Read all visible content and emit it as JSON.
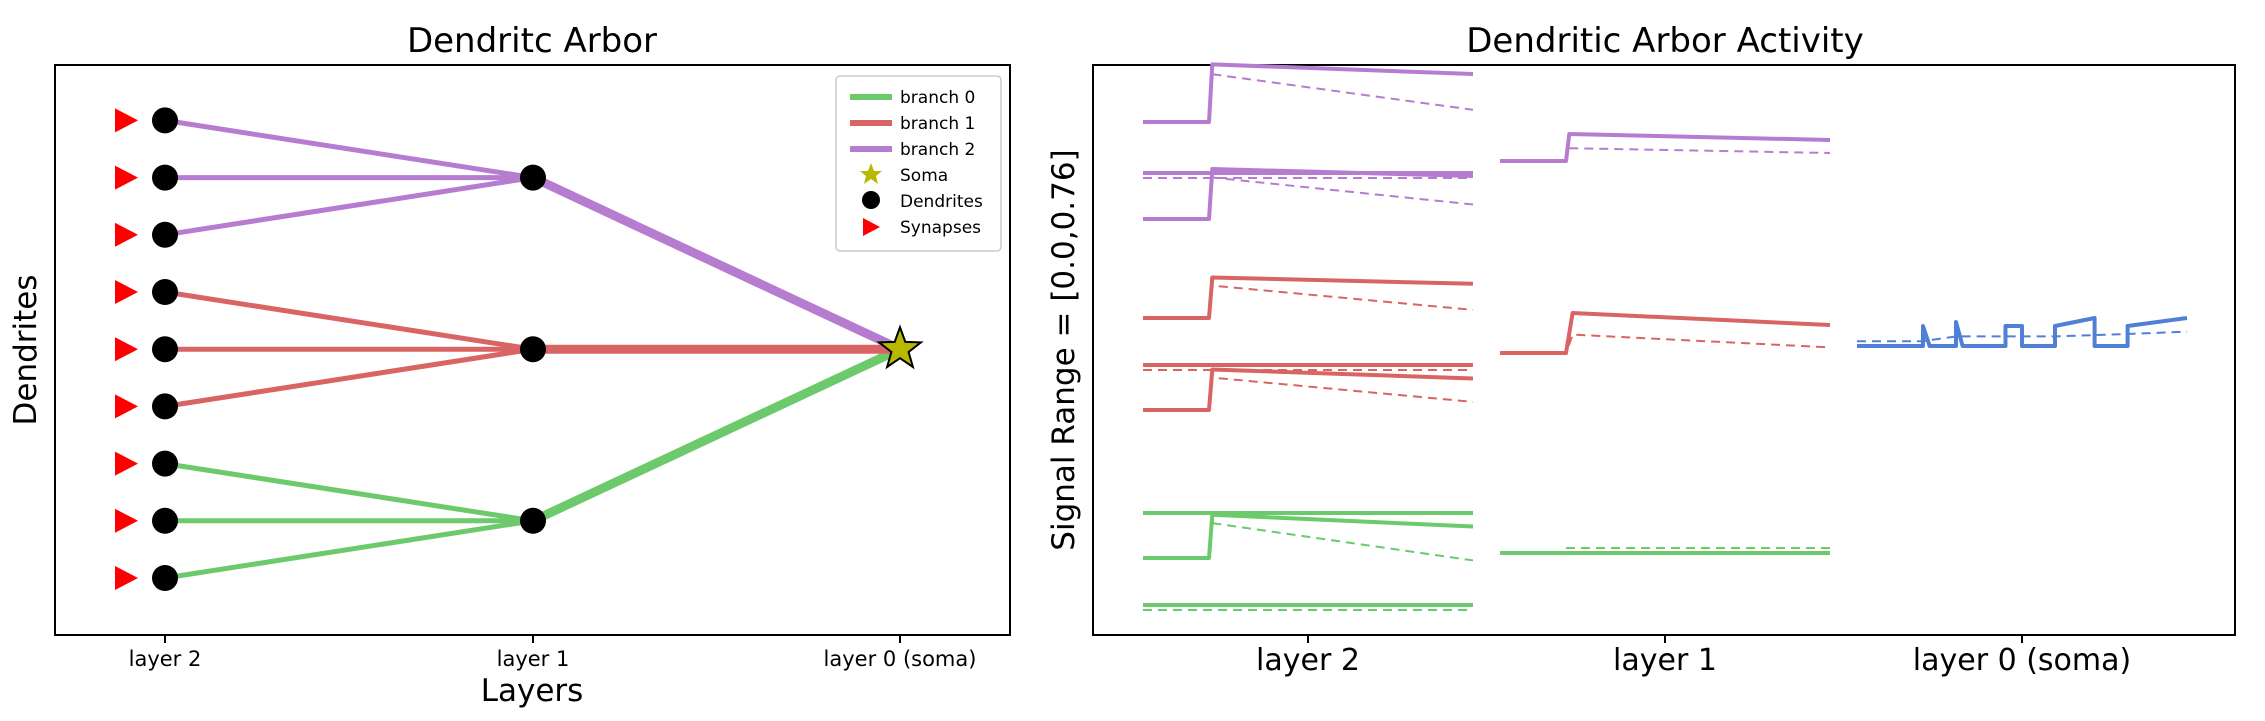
{
  "colors": {
    "branch0": "#6cc96c",
    "branch1": "#d96464",
    "branch2": "#b57ccf",
    "soma": "#b8b800",
    "soma_trace": "#4f80d6",
    "synapse": "#ff0000",
    "dendrite": "#000000"
  },
  "chart_data": [
    {
      "type": "scatter",
      "title": "Dendritc Arbor",
      "xlabel": "Layers",
      "ylabel": "Dendrites",
      "xticks": [
        "layer 2",
        "layer 1",
        "layer 0 (soma)"
      ],
      "legend": {
        "placement": "top-right",
        "entries": [
          {
            "label": "branch 0",
            "kind": "line",
            "color": "#6cc96c"
          },
          {
            "label": "branch 1",
            "kind": "line",
            "color": "#d96464"
          },
          {
            "label": "branch 2",
            "kind": "line",
            "color": "#b57ccf"
          },
          {
            "label": "Soma",
            "kind": "star",
            "color": "#b8b800"
          },
          {
            "label": "Dendrites",
            "kind": "circle",
            "color": "#000000"
          },
          {
            "label": "Synapses",
            "kind": "triangle",
            "color": "#ff0000"
          }
        ]
      },
      "nodes": {
        "layer2": [
          {
            "y": 1,
            "branch": 0
          },
          {
            "y": 2,
            "branch": 0
          },
          {
            "y": 3,
            "branch": 0
          },
          {
            "y": 4,
            "branch": 1
          },
          {
            "y": 5,
            "branch": 1
          },
          {
            "y": 6,
            "branch": 1
          },
          {
            "y": 7,
            "branch": 2
          },
          {
            "y": 8,
            "branch": 2
          },
          {
            "y": 9,
            "branch": 2
          }
        ],
        "layer1": [
          {
            "y": 2,
            "branch": 0
          },
          {
            "y": 5,
            "branch": 1
          },
          {
            "y": 8,
            "branch": 2
          }
        ],
        "soma": {
          "y": 5
        }
      },
      "synapses_at": "layer 2",
      "grid": false
    },
    {
      "type": "line",
      "title": "Dendritic Arbor Activity",
      "ylabel": "Signal Range = [0.0,0.76]",
      "xticks": [
        "layer 2",
        "layer 1",
        "layer 0 (soma)"
      ],
      "grid": false,
      "layer2": [
        {
          "branch": 2,
          "solid": [
            [
              0,
              0.1
            ],
            [
              0.2,
              0.1
            ],
            [
              0.21,
              0.58
            ],
            [
              1,
              0.5
            ]
          ],
          "dashed": [
            [
              0.21,
              0.58
            ],
            [
              1,
              0.25
            ]
          ]
        },
        {
          "branch": 2,
          "solid": [
            [
              0,
              0.3
            ],
            [
              1,
              0.3
            ]
          ],
          "dashed": [
            [
              0,
              0.25
            ],
            [
              1,
              0.25
            ]
          ]
        },
        {
          "branch": 2,
          "solid": [
            [
              0,
              0.05
            ],
            [
              0.2,
              0.05
            ],
            [
              0.21,
              0.55
            ],
            [
              1,
              0.48
            ]
          ],
          "dashed": [
            [
              0,
              0.1
            ],
            [
              0.2,
              0.1
            ],
            [
              0.21,
              0.55
            ],
            [
              1,
              0.25
            ]
          ]
        },
        {
          "branch": 1,
          "solid": [
            [
              0,
              0.1
            ],
            [
              0.2,
              0.1
            ],
            [
              0.21,
              0.55
            ],
            [
              1,
              0.48
            ]
          ],
          "dashed": [
            [
              0,
              0.15
            ],
            [
              0.2,
              0.15
            ],
            [
              0.21,
              0.55
            ],
            [
              1,
              0.25
            ]
          ]
        },
        {
          "branch": 1,
          "solid": [
            [
              0,
              0.35
            ],
            [
              1,
              0.35
            ]
          ],
          "dashed": [
            [
              0,
              0.3
            ],
            [
              1,
              0.3
            ]
          ]
        },
        {
          "branch": 1,
          "solid": [
            [
              0,
              0.1
            ],
            [
              0.2,
              0.1
            ],
            [
              0.21,
              0.55
            ],
            [
              1,
              0.45
            ]
          ],
          "dashed": [
            [
              0,
              0.15
            ],
            [
              0.2,
              0.15
            ],
            [
              0.21,
              0.55
            ],
            [
              1,
              0.25
            ]
          ]
        },
        {
          "branch": 0,
          "solid": [
            [
              0,
              0.3
            ],
            [
              1,
              0.3
            ]
          ],
          "dashed": []
        },
        {
          "branch": 0,
          "solid": [
            [
              0,
              0.1
            ],
            [
              0.2,
              0.1
            ],
            [
              0.21,
              0.58
            ],
            [
              1,
              0.45
            ]
          ],
          "dashed": [
            [
              0.21,
              0.58
            ],
            [
              1,
              0.12
            ]
          ]
        },
        {
          "branch": 0,
          "solid": [
            [
              0,
              0.25
            ],
            [
              1,
              0.25
            ]
          ],
          "dashed": [
            [
              0,
              0.15
            ],
            [
              1,
              0.15
            ]
          ]
        }
      ],
      "layer1": [
        {
          "branch": 2,
          "solid": [
            [
              0,
              0.1
            ],
            [
              0.2,
              0.1
            ],
            [
              0.21,
              0.55
            ],
            [
              1,
              0.45
            ]
          ],
          "dashed": [
            [
              0.21,
              0.45
            ],
            [
              1,
              0.35
            ]
          ]
        },
        {
          "branch": 1,
          "solid": [
            [
              0,
              0.1
            ],
            [
              0.2,
              0.1
            ],
            [
              0.22,
              0.6
            ],
            [
              1,
              0.45
            ]
          ],
          "dashed": [
            [
              0,
              0.15
            ],
            [
              0.2,
              0.15
            ],
            [
              0.22,
              0.45
            ],
            [
              1,
              0.25
            ]
          ]
        },
        {
          "branch": 0,
          "solid": [
            [
              0,
              0.3
            ],
            [
              1,
              0.3
            ]
          ],
          "dashed": [
            [
              0,
              0.25
            ],
            [
              0.2,
              0.25
            ],
            [
              0.22,
              0.45
            ],
            [
              1,
              0.45
            ]
          ]
        }
      ],
      "soma": {
        "solid": [
          [
            0,
            0.1
          ],
          [
            0.2,
            0.1
          ],
          [
            0.2,
            0.35
          ],
          [
            0.22,
            0.1
          ],
          [
            0.3,
            0.1
          ],
          [
            0.3,
            0.4
          ],
          [
            0.32,
            0.1
          ],
          [
            0.45,
            0.1
          ],
          [
            0.45,
            0.35
          ],
          [
            0.5,
            0.35
          ],
          [
            0.5,
            0.1
          ],
          [
            0.6,
            0.1
          ],
          [
            0.6,
            0.35
          ],
          [
            0.72,
            0.45
          ],
          [
            0.72,
            0.1
          ],
          [
            0.82,
            0.1
          ],
          [
            0.82,
            0.35
          ],
          [
            1,
            0.45
          ]
        ],
        "dashed": [
          [
            0,
            0.2
          ],
          [
            0.2,
            0.2
          ],
          [
            0.3,
            0.3
          ],
          [
            0.45,
            0.3
          ],
          [
            0.6,
            0.3
          ],
          [
            0.82,
            0.35
          ],
          [
            1,
            0.4
          ]
        ]
      }
    }
  ]
}
